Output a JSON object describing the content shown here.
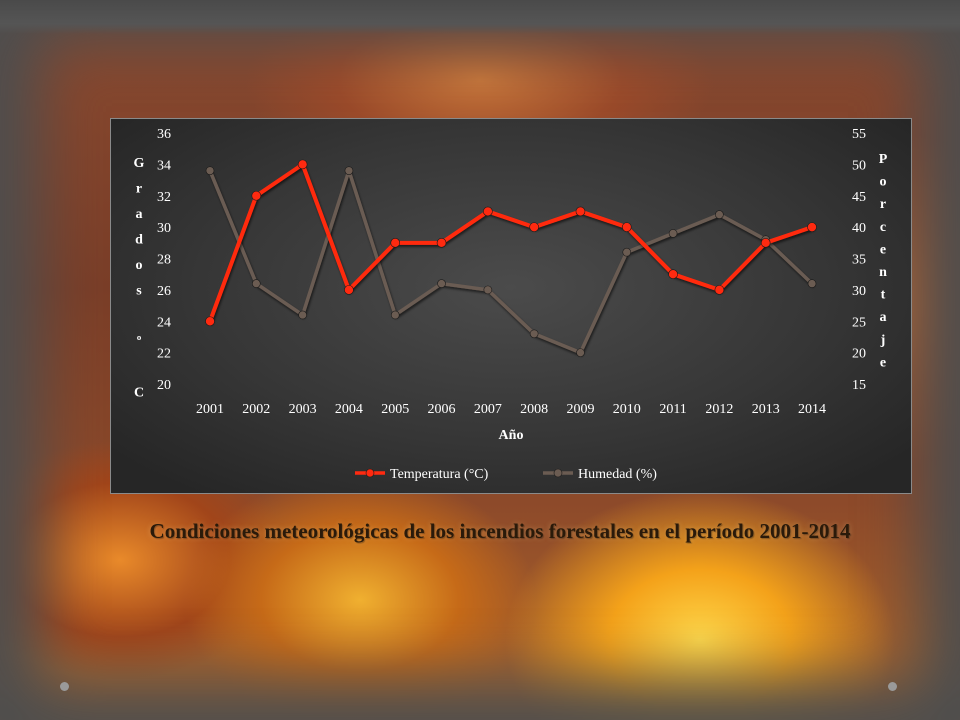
{
  "caption": "Condiciones meteorológicas  de los incendios forestales en el período 2001-2014",
  "colors": {
    "temperature": "#ff2a10",
    "humidity": "#6b5c52",
    "panel_bg": "#363636",
    "text": "#ffffff"
  },
  "chart_data": {
    "type": "line",
    "x": [
      "2001",
      "2002",
      "2003",
      "2004",
      "2005",
      "2006",
      "2007",
      "2008",
      "2009",
      "2010",
      "2011",
      "2012",
      "2013",
      "2014"
    ],
    "xlabel": "Año",
    "ylabel_left_chars": [
      "G",
      "r",
      "a",
      "d",
      "o",
      "s",
      "",
      "º",
      "",
      "C"
    ],
    "ylabel_right_chars": [
      "P",
      "o",
      "r",
      "c",
      "e",
      "n",
      "t",
      "a",
      "j",
      "e"
    ],
    "y_left_ticks": [
      "20",
      "22",
      "24",
      "26",
      "28",
      "30",
      "32",
      "34",
      "36"
    ],
    "y_right_ticks": [
      "15",
      "20",
      "25",
      "30",
      "35",
      "40",
      "45",
      "50",
      "55"
    ],
    "ylim_left": [
      20,
      36
    ],
    "ylim_right": [
      15,
      55
    ],
    "grid": false,
    "legend_position": "bottom",
    "series": [
      {
        "name": "Temperatura (°C)",
        "axis": "left",
        "values": [
          24,
          32,
          34,
          26,
          29,
          29,
          31,
          30,
          31,
          30,
          27,
          26,
          29,
          30
        ]
      },
      {
        "name": "Humedad (%)",
        "axis": "right",
        "values": [
          49,
          31,
          26,
          49,
          26,
          31,
          30,
          23,
          20,
          36,
          39,
          42,
          38,
          31
        ]
      }
    ]
  }
}
